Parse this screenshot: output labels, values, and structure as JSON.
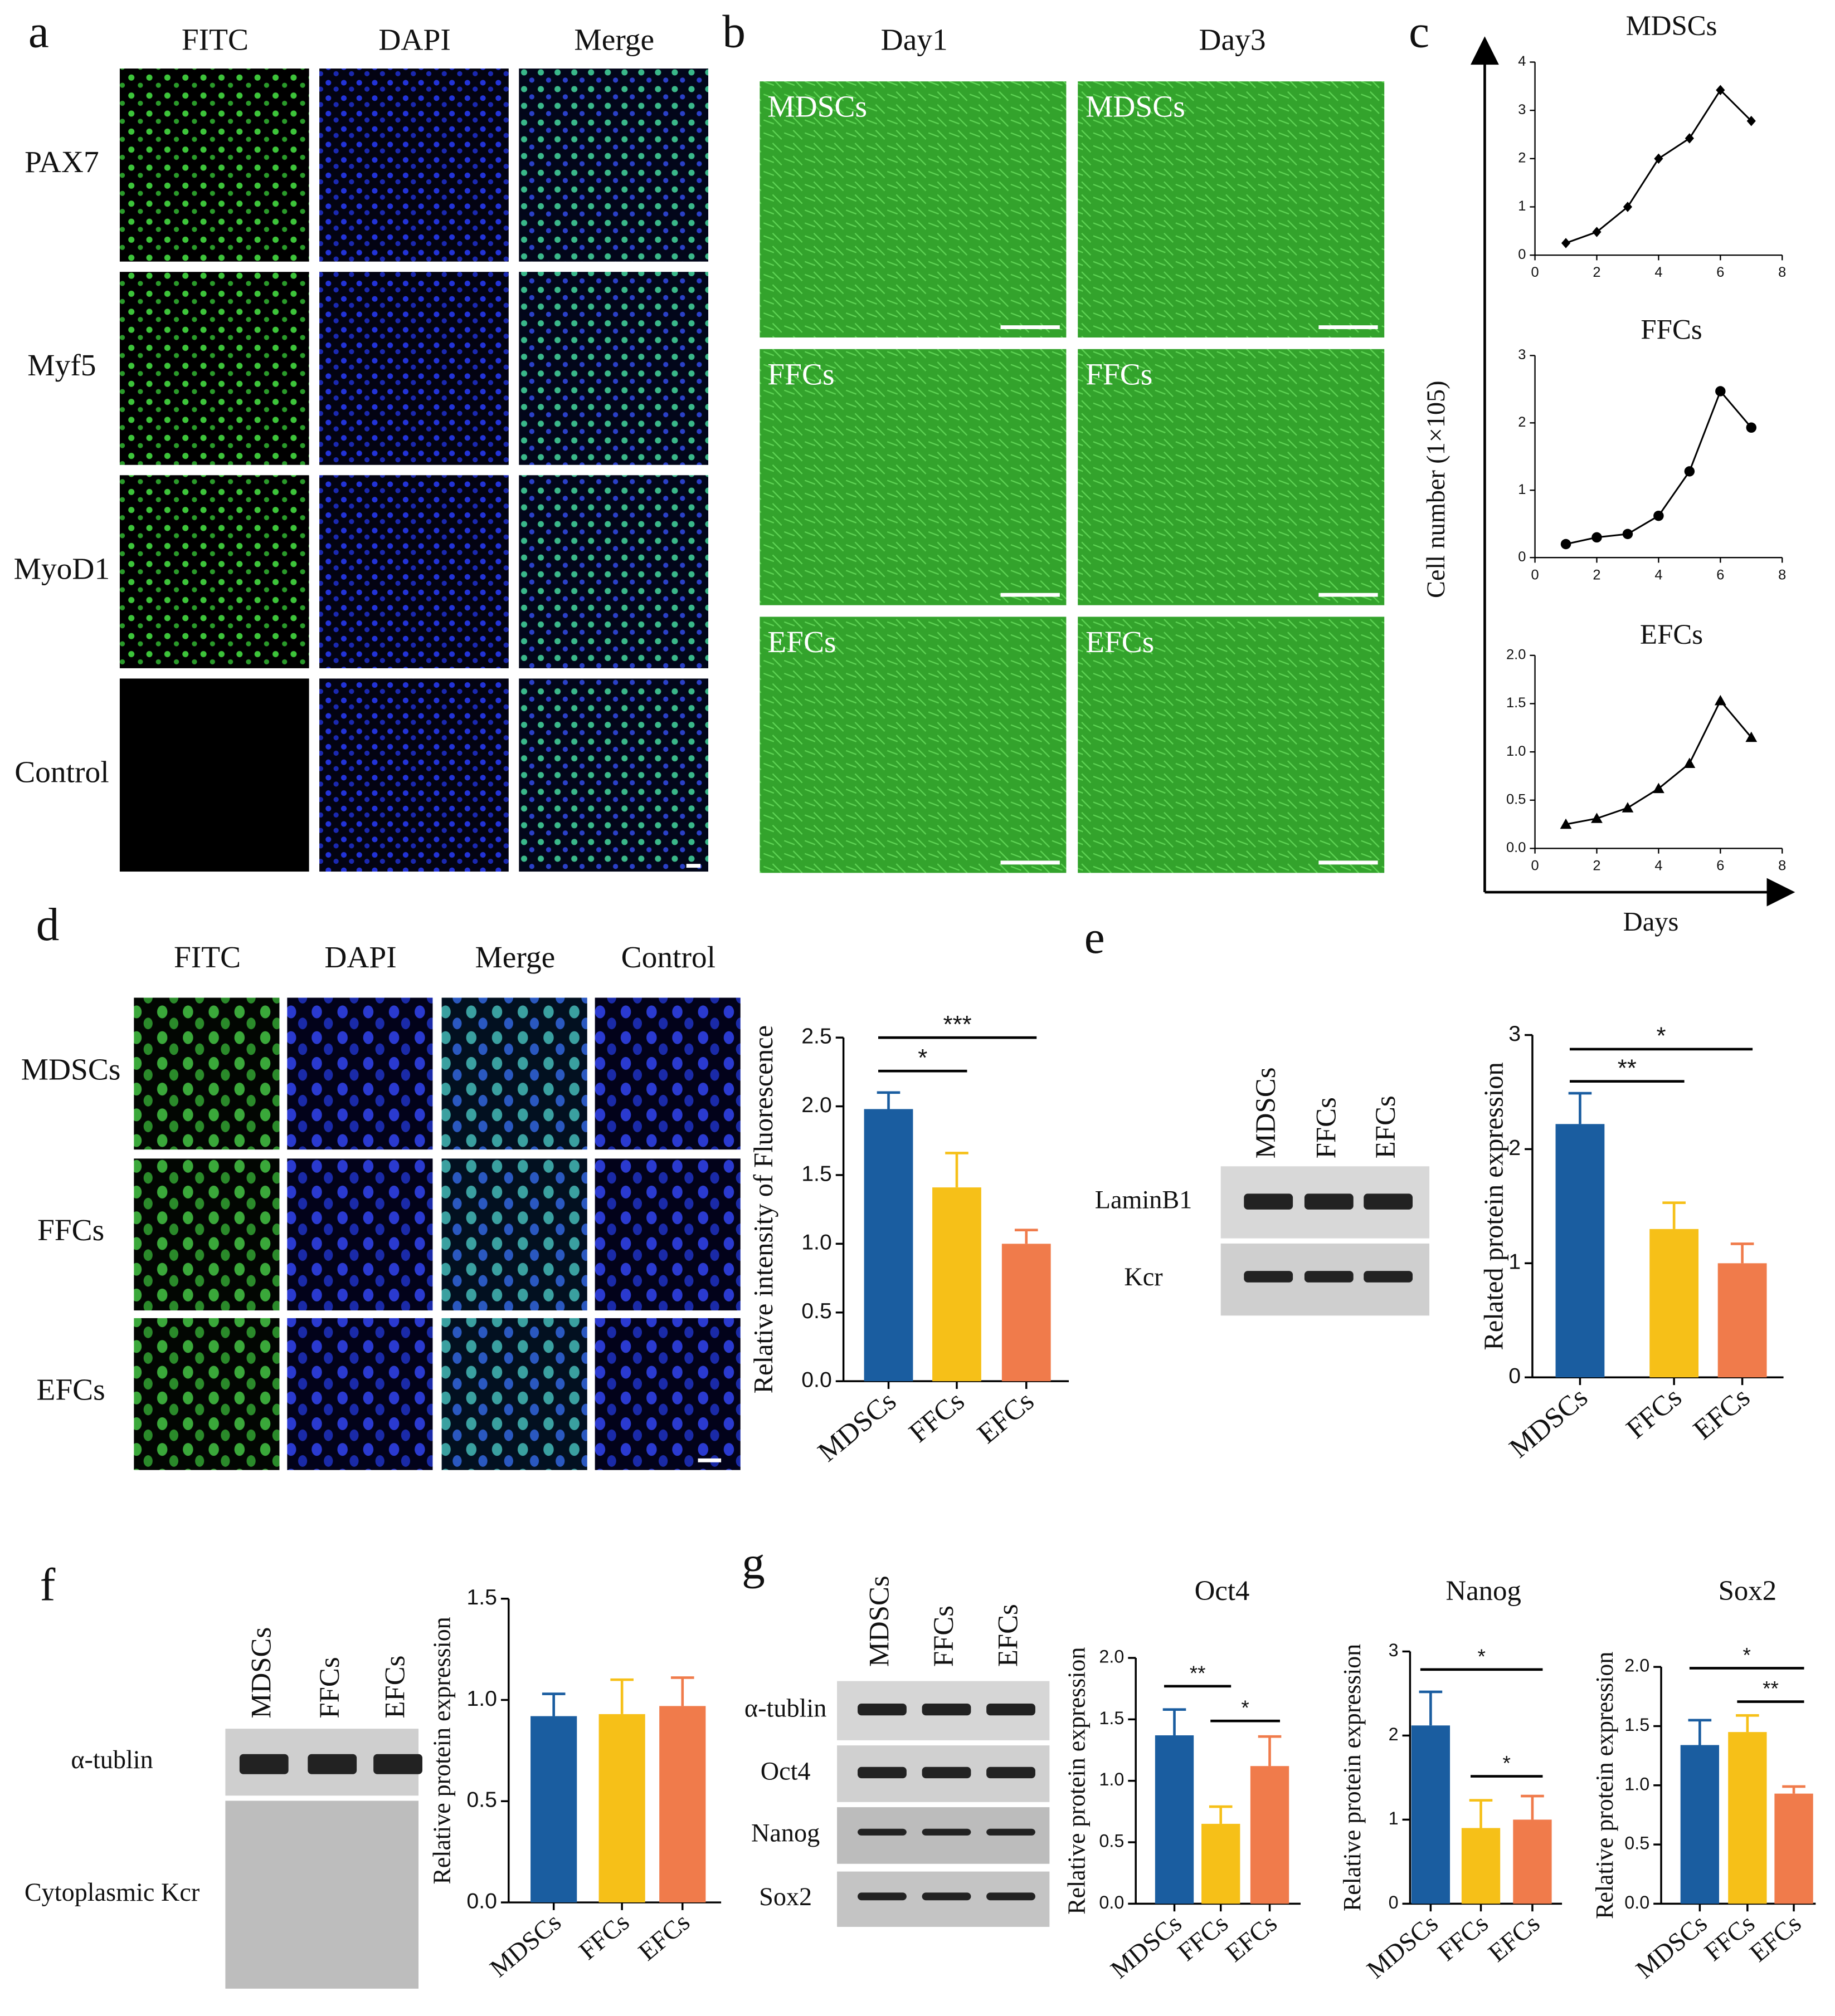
{
  "panel_labels": [
    "a",
    "b",
    "c",
    "d",
    "e",
    "f",
    "g"
  ],
  "panel_a": {
    "columns": [
      "FITC",
      "DAPI",
      "Merge"
    ],
    "rows": [
      "PAX7",
      "Myf5",
      "MyoD1",
      "Control"
    ]
  },
  "panel_b": {
    "columns": [
      "Day1",
      "Day3"
    ],
    "rows": [
      "MDSCs",
      "FFCs",
      "EFCs"
    ]
  },
  "panel_c": {
    "ylabel": "Cell number (1×105)",
    "xlabel": "Days"
  },
  "panel_d": {
    "columns": [
      "FITC",
      "DAPI",
      "Merge",
      "Control"
    ],
    "rows": [
      "MDSCs",
      "FFCs",
      "EFCs"
    ]
  },
  "panel_e": {
    "lanes": [
      "MDSCs",
      "FFCs",
      "EFCs"
    ],
    "bands": [
      "LaminB1",
      "Kcr"
    ]
  },
  "panel_f": {
    "lanes": [
      "MDSCs",
      "FFCs",
      "EFCs"
    ],
    "bands": [
      "α-tublin",
      "Cytoplasmic Kcr"
    ]
  },
  "panel_g": {
    "lanes": [
      "MDSCs",
      "FFCs",
      "EFCs"
    ],
    "bands": [
      "α-tublin",
      "Oct4",
      "Nanog",
      "Sox2"
    ]
  },
  "chart_data": [
    {
      "type": "line",
      "title": "MDSCs",
      "marker": "diamond",
      "color": "#000000",
      "x": [
        1,
        2,
        3,
        4,
        5,
        6,
        7
      ],
      "values": [
        0.25,
        0.48,
        1.0,
        2.0,
        2.42,
        3.42,
        2.78
      ],
      "xlim": [
        0,
        8
      ],
      "xticks": [
        0,
        2,
        4,
        6,
        8
      ],
      "ylim": [
        0,
        4
      ],
      "yticks": [
        0,
        1,
        2,
        3,
        4
      ]
    },
    {
      "type": "line",
      "title": "FFCs",
      "marker": "circle",
      "color": "#000000",
      "x": [
        1,
        2,
        3,
        4,
        5,
        6,
        7
      ],
      "values": [
        0.2,
        0.3,
        0.35,
        0.62,
        1.28,
        2.47,
        1.93
      ],
      "xlim": [
        0,
        8
      ],
      "xticks": [
        0,
        2,
        4,
        6,
        8
      ],
      "ylim": [
        0,
        3
      ],
      "yticks": [
        0,
        1,
        2,
        3
      ]
    },
    {
      "type": "line",
      "title": "EFCs",
      "marker": "triangle",
      "color": "#000000",
      "x": [
        1,
        2,
        3,
        4,
        5,
        6,
        7
      ],
      "values": [
        0.25,
        0.31,
        0.42,
        0.62,
        0.88,
        1.53,
        1.15
      ],
      "xlim": [
        0,
        8
      ],
      "xticks": [
        0,
        2,
        4,
        6,
        8
      ],
      "ylim": [
        0,
        2
      ],
      "yticks": [
        {
          "value": 0,
          "label": "0.0"
        },
        0.5,
        {
          "value": 1,
          "label": "1.0"
        },
        1.5,
        {
          "value": 2,
          "label": "2.0"
        }
      ]
    },
    {
      "type": "bar",
      "ylabel": "Relative intensity of Fluorescence",
      "categories": [
        "MDSCs",
        "FFCs",
        "EFCs"
      ],
      "values": [
        1.98,
        1.41,
        1.0
      ],
      "errors": [
        0.12,
        0.25,
        0.1
      ],
      "colors": [
        "#1a5da0",
        "#f6c018",
        "#f07b4b"
      ],
      "ylim": [
        0,
        2.5
      ],
      "yticks": [
        {
          "value": 0,
          "label": "0.0"
        },
        0.5,
        {
          "value": 1,
          "label": "1.0"
        },
        1.5,
        {
          "value": 2,
          "label": "2.0"
        },
        2.5
      ],
      "significance": [
        "*",
        "***"
      ]
    },
    {
      "type": "bar",
      "ylabel": "Related protein expression",
      "categories": [
        "MDSCs",
        "FFCs",
        "EFCs"
      ],
      "values": [
        2.22,
        1.3,
        1.0
      ],
      "errors": [
        0.27,
        0.23,
        0.17
      ],
      "colors": [
        "#1a5da0",
        "#f6c018",
        "#f07b4b"
      ],
      "ylim": [
        0,
        3
      ],
      "yticks": [
        0,
        1,
        2,
        3
      ],
      "significance": [
        "**",
        "*"
      ]
    },
    {
      "type": "bar",
      "ylabel": "Relative protein expression",
      "categories": [
        "MDSCs",
        "FFCs",
        "EFCs"
      ],
      "values": [
        0.92,
        0.93,
        0.97
      ],
      "errors": [
        0.11,
        0.17,
        0.14
      ],
      "colors": [
        "#1a5da0",
        "#f6c018",
        "#f07b4b"
      ],
      "ylim": [
        0,
        1.5
      ],
      "yticks": [
        {
          "value": 0,
          "label": "0.0"
        },
        0.5,
        {
          "value": 1,
          "label": "1.0"
        },
        1.5
      ],
      "significance": []
    },
    {
      "type": "bar",
      "title": "Oct4",
      "ylabel": "Relative protein expression",
      "categories": [
        "MDSCs",
        "FFCs",
        "EFCs"
      ],
      "values": [
        1.37,
        0.65,
        1.12
      ],
      "errors": [
        0.21,
        0.14,
        0.24
      ],
      "colors": [
        "#1a5da0",
        "#f6c018",
        "#f07b4b"
      ],
      "ylim": [
        0,
        2
      ],
      "yticks": [
        {
          "value": 0,
          "label": "0.0"
        },
        0.5,
        {
          "value": 1,
          "label": "1.0"
        },
        1.5,
        {
          "value": 2,
          "label": "2.0"
        }
      ],
      "significance": [
        "**",
        "*"
      ]
    },
    {
      "type": "bar",
      "title": "Nanog",
      "ylabel": "Relative protein expression",
      "categories": [
        "MDSCs",
        "FFCs",
        "EFCs"
      ],
      "values": [
        2.12,
        0.9,
        1.0
      ],
      "errors": [
        0.4,
        0.33,
        0.28
      ],
      "colors": [
        "#1a5da0",
        "#f6c018",
        "#f07b4b"
      ],
      "ylim": [
        0,
        3
      ],
      "yticks": [
        0,
        1,
        2,
        3
      ],
      "significance": [
        "*",
        "*"
      ]
    },
    {
      "type": "bar",
      "title": "Sox2",
      "ylabel": "Relative protein expression",
      "categories": [
        "MDSCs",
        "FFCs",
        "EFCs"
      ],
      "values": [
        1.34,
        1.45,
        0.93
      ],
      "errors": [
        0.21,
        0.14,
        0.06
      ],
      "colors": [
        "#1a5da0",
        "#f6c018",
        "#f07b4b"
      ],
      "ylim": [
        0,
        2
      ],
      "yticks": [
        {
          "value": 0,
          "label": "0.0"
        },
        0.5,
        {
          "value": 1,
          "label": "1.0"
        },
        1.5,
        {
          "value": 2,
          "label": "2.0"
        }
      ],
      "significance": [
        "*",
        "**"
      ]
    }
  ]
}
